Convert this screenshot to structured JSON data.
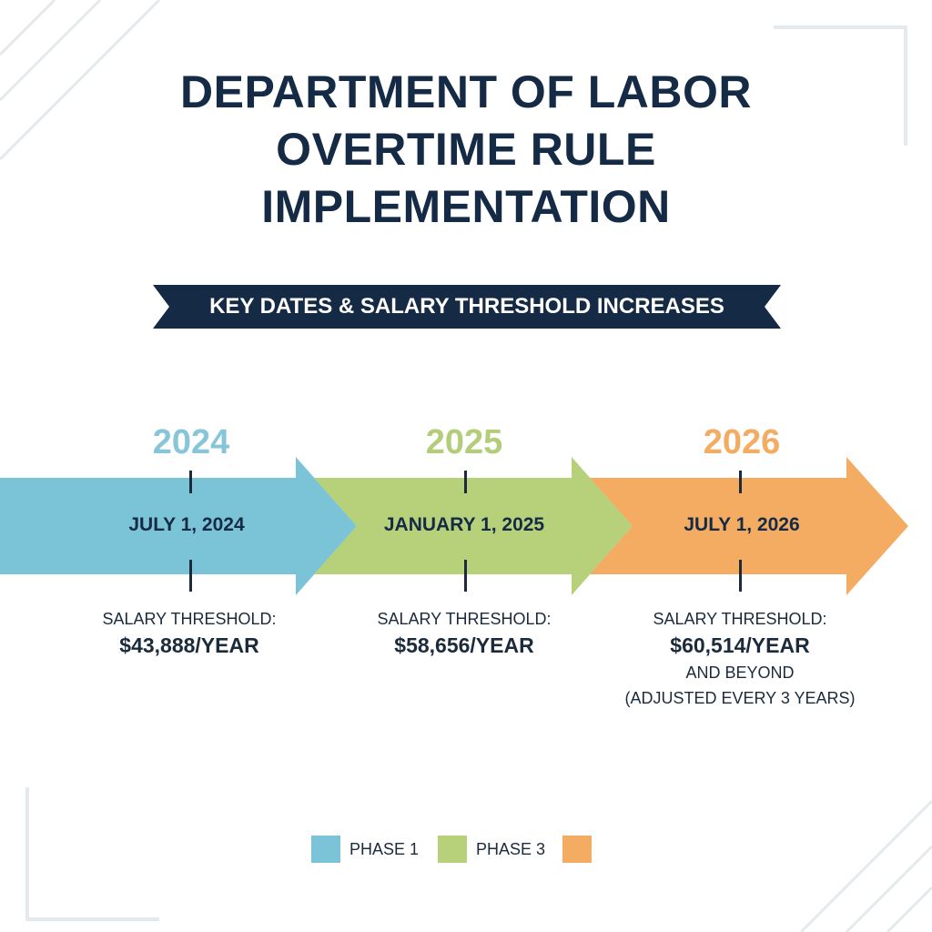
{
  "title": {
    "line1": "DEPARTMENT OF LABOR",
    "line2": "OVERTIME RULE",
    "line3": "IMPLEMENTATION"
  },
  "banner": {
    "text": "KEY DATES & SALARY THRESHOLD INCREASES"
  },
  "colors": {
    "navy": "#152b45",
    "phase_blue": "#7bc4d7",
    "phase_green": "#b7d07a",
    "phase_orange": "#f4ab62",
    "year_blue": "#86c6d8",
    "year_green": "#b3cd7a",
    "year_orange": "#f4ab62"
  },
  "timeline": [
    {
      "year": "2024",
      "date": "JULY 1, 2024",
      "threshold_label": "SALARY THRESHOLD:",
      "threshold_amount": "$43,888/YEAR",
      "note_line1": "",
      "note_line2": ""
    },
    {
      "year": "2025",
      "date": "JANUARY 1, 2025",
      "threshold_label": "SALARY THRESHOLD:",
      "threshold_amount": "$58,656/YEAR",
      "note_line1": "",
      "note_line2": ""
    },
    {
      "year": "2026",
      "date": "JULY 1, 2026",
      "threshold_label": "SALARY THRESHOLD:",
      "threshold_amount": "$60,514/YEAR",
      "note_line1": "AND BEYOND",
      "note_line2": "(ADJUSTED EVERY 3 YEARS)"
    }
  ],
  "legend": [
    {
      "label": "PHASE 1",
      "color": "#7bc4d7"
    },
    {
      "label": "PHASE 3",
      "color": "#b7d07a"
    },
    {
      "label": "",
      "color": "#f4ab62"
    }
  ]
}
